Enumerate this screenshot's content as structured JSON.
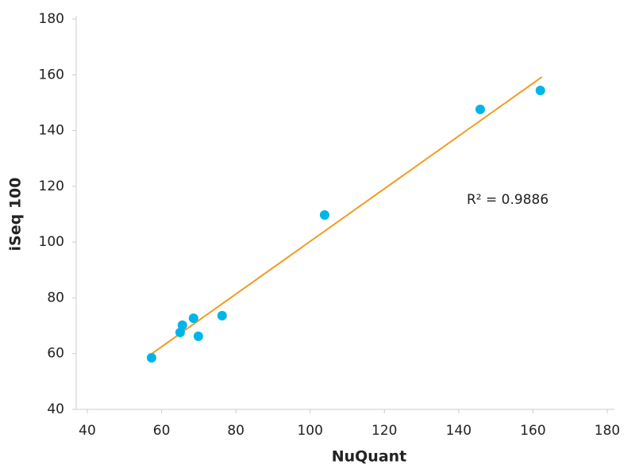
{
  "chart_data": {
    "type": "scatter",
    "x_label": "NuQuant",
    "y_label": "iSeq 100",
    "annotation": "R² = 0.9886",
    "x": [
      57.3,
      65.0,
      65.6,
      68.6,
      69.9,
      76.3,
      103.9,
      145.8,
      162.0
    ],
    "y": [
      58.5,
      67.6,
      70.2,
      72.7,
      66.2,
      73.6,
      109.7,
      147.6,
      154.4
    ],
    "color": "#00b5e8",
    "trendline": {
      "x": [
        57.3,
        162.4
      ],
      "y": [
        59.9,
        159.2
      ],
      "color": "#f39a1e"
    },
    "xlim": [
      40,
      180
    ],
    "xticks": [
      40,
      60,
      80,
      100,
      120,
      140,
      160,
      180
    ],
    "ylim": [
      40,
      180
    ],
    "yticks": [
      40,
      60,
      80,
      100,
      120,
      140,
      160,
      180
    ]
  }
}
